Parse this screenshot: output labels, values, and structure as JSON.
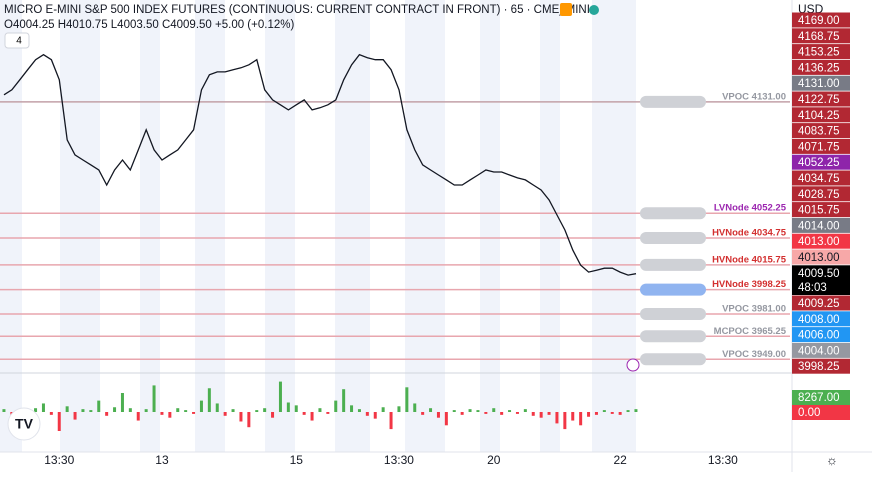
{
  "chart_data": {
    "type": "line",
    "title": "MICRO E-MINI S&P 500 INDEX FUTURES (CONTINUOUS: CURRENT CONTRACT IN FRONT) · 65 · CME_MINI",
    "ohlc": "O4004.25 H4010.75 L4003.50 C4009.50 +5.00 (+0.12%)",
    "indicator_count": "4",
    "currency": "USD",
    "countdown": "48:03",
    "ylim": [
      3940,
      4203
    ],
    "categories": [
      null,
      null,
      null,
      null,
      null,
      null,
      null,
      "13:30",
      null,
      null,
      null,
      null,
      null,
      null,
      null,
      null,
      null,
      null,
      null,
      null,
      "13",
      null,
      null,
      null,
      null,
      null,
      null,
      null,
      null,
      null,
      null,
      null,
      null,
      null,
      null,
      null,
      null,
      "15",
      null,
      null,
      null,
      null,
      null,
      null,
      null,
      null,
      null,
      null,
      null,
      null,
      "13:30",
      null,
      null,
      null,
      null,
      null,
      null,
      null,
      null,
      null,
      null,
      null,
      "20",
      null,
      null,
      null,
      null,
      null,
      null,
      null,
      null,
      null,
      null,
      null,
      null,
      null,
      null,
      null,
      "22",
      null,
      null,
      null,
      null,
      null,
      null,
      null,
      null,
      null,
      null,
      null,
      null,
      "13:30",
      null,
      null,
      null,
      null,
      null,
      null,
      null,
      null
    ],
    "series": [
      {
        "color": "#131722",
        "values": [
          4136,
          4139.5,
          4146.6,
          4153.7,
          4160.8,
          4164.3,
          4160.8,
          4146.6,
          4104.1,
          4093.5,
          4089.9,
          4086.4,
          4082.8,
          4072.2,
          4082.8,
          4089.9,
          4082.8,
          4097,
          4111.2,
          4097,
          4089.9,
          4093.5,
          4097,
          4104.1,
          4111.2,
          4139.5,
          4150.1,
          4152.2,
          4152.2,
          4153.7,
          4155.1,
          4157.2,
          4160.8,
          4139.5,
          4132.4,
          4128.9,
          4125.3,
          4128.9,
          4132.4,
          4125.3,
          4126.8,
          4128.9,
          4132.4,
          4146.6,
          4157.2,
          4164.3,
          4162.2,
          4160.8,
          4160.8,
          4153.7,
          4139.5,
          4111.2,
          4097,
          4086.4,
          4082.8,
          4079.3,
          4075.8,
          4072.2,
          4072.2,
          4075.8,
          4079.3,
          4082.8,
          4081.4,
          4081.4,
          4079.3,
          4077.2,
          4075.8,
          4072.2,
          4068.7,
          4061.6,
          4051,
          4040.4,
          4026.2,
          4015.6,
          4010.6,
          4012,
          4013.4,
          4013.4,
          4010.6,
          4008.5,
          4009.5,
          null,
          null,
          null,
          null,
          null,
          null,
          null,
          null,
          null,
          null,
          null,
          null,
          null,
          null,
          null,
          null,
          null,
          null,
          null
        ]
      }
    ],
    "levels": [
      {
        "label": "VPOC 4131.00",
        "value": 4131,
        "color": "#9598a1"
      },
      {
        "label": "LVNode 4052.25",
        "value": 4052.25,
        "color": "#9c27b0"
      },
      {
        "label": "HVNode 4034.75",
        "value": 4034.75,
        "color": "#d32f2f"
      },
      {
        "label": "HVNode 4015.75",
        "value": 4015.75,
        "color": "#d32f2f"
      },
      {
        "label": "HVNode 3998.25",
        "value": 3998.25,
        "color": "#d32f2f"
      },
      {
        "label": "VPOC 3981.00",
        "value": 3981,
        "color": "#9598a1"
      },
      {
        "label": "MCPOC 3965.25",
        "value": 3965.25,
        "color": "#9598a1"
      },
      {
        "label": "VPOC 3949.00",
        "value": 3949,
        "color": "#9598a1"
      }
    ],
    "price_tags": [
      {
        "label": "4169.00",
        "color": "#b22833"
      },
      {
        "label": "4168.75",
        "color": "#b22833"
      },
      {
        "label": "4153.25",
        "color": "#b22833"
      },
      {
        "label": "4136.25",
        "color": "#b22833"
      },
      {
        "label": "4131.00",
        "color": "#787b86"
      },
      {
        "label": "4122.75",
        "color": "#b22833"
      },
      {
        "label": "4104.25",
        "color": "#b22833"
      },
      {
        "label": "4083.75",
        "color": "#b22833"
      },
      {
        "label": "4071.75",
        "color": "#b22833"
      },
      {
        "label": "4052.25",
        "color": "#8e24aa"
      },
      {
        "label": "4034.75",
        "color": "#b22833"
      },
      {
        "label": "4028.75",
        "color": "#b22833"
      },
      {
        "label": "4015.75",
        "color": "#b22833"
      },
      {
        "label": "4014.00",
        "color": "#787b86"
      },
      {
        "label": "4013.00",
        "color": "#f23645"
      },
      {
        "label": "4013.00",
        "color": "#f7a8a8"
      },
      {
        "label": "4009.50",
        "color": "#000000"
      }
    ],
    "price_tags_lower": [
      {
        "label": "4009.25",
        "color": "#b22833"
      },
      {
        "label": "4008.00",
        "color": "#2196f3"
      },
      {
        "label": "4006.00",
        "color": "#2196f3"
      },
      {
        "label": "4004.00",
        "color": "#9598a1"
      },
      {
        "label": "3998.25",
        "color": "#b22833"
      }
    ],
    "volume": {
      "ylim": [
        -40000,
        40000
      ],
      "up_color": "#4caf50",
      "down_color": "#f23645",
      "last_label": "8267.00",
      "zero_label": "0.00",
      "values": [
        3000,
        -5000,
        2000,
        -12000,
        4000,
        9000,
        -3000,
        -20000,
        6000,
        -8000,
        3000,
        2000,
        12000,
        -4000,
        5000,
        20000,
        4000,
        -9000,
        3000,
        28000,
        -3000,
        -6000,
        4000,
        2000,
        -2000,
        12000,
        25000,
        9000,
        -4000,
        3000,
        -10000,
        -16000,
        2000,
        4000,
        -6000,
        32000,
        10000,
        7000,
        -3000,
        -9000,
        4000,
        -2000,
        12000,
        24000,
        7000,
        3000,
        -4000,
        -7000,
        5000,
        -18000,
        6000,
        26000,
        9000,
        -3000,
        4000,
        -6000,
        -14000,
        2000,
        -3000,
        3000,
        2000,
        -2000,
        4000,
        -3000,
        2000,
        -2000,
        3000,
        -4000,
        -6000,
        -3000,
        -12000,
        -18000,
        -9000,
        -14000,
        -5000,
        -3000,
        2000,
        -2000,
        -3000,
        2000,
        3000,
        null,
        null,
        null,
        null,
        null,
        null,
        null,
        null,
        null,
        null,
        null,
        null,
        null,
        null,
        null,
        null,
        null,
        null,
        null
      ]
    }
  }
}
